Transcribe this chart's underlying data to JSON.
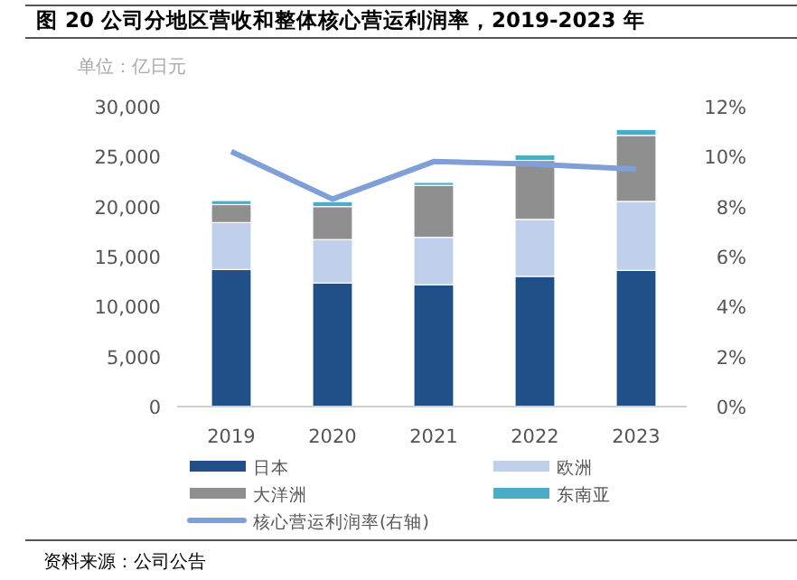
{
  "chart_data": {
    "type": "bar",
    "title": "图 20  公司分地区营收和整体核心营运利润率，2019-2023 年",
    "ylabel": "单位：亿日元",
    "categories": [
      "2019",
      "2020",
      "2021",
      "2022",
      "2023"
    ],
    "stacked": true,
    "series": [
      {
        "name": "日本",
        "color": "#215089",
        "values": [
          13700,
          12350,
          12170,
          13020,
          13620
        ]
      },
      {
        "name": "欧洲",
        "color": "#c0d0ea",
        "values": [
          4700,
          4350,
          4750,
          5700,
          6900
        ]
      },
      {
        "name": "大洋洲",
        "color": "#8f8f8f",
        "values": [
          1800,
          3300,
          5200,
          5900,
          6600
        ]
      },
      {
        "name": "东南亚",
        "color": "#4bacc6",
        "values": [
          400,
          500,
          300,
          550,
          600
        ]
      },
      {
        "name": "核心营运利润率(右轴)",
        "type": "line",
        "axis": "y2",
        "color": "#7f9fd6",
        "values": [
          10.2,
          8.3,
          9.8,
          9.7,
          9.5
        ]
      }
    ],
    "ylim": [
      0,
      30000
    ],
    "yticks": [
      0,
      {
        "value": 5000,
        "label": "5,000"
      },
      {
        "value": 10000,
        "label": "10,000"
      },
      {
        "value": 15000,
        "label": "15,000"
      },
      {
        "value": 20000,
        "label": "20,000"
      },
      {
        "value": 25000,
        "label": "25,000"
      },
      {
        "value": 30000,
        "label": "30,000"
      }
    ],
    "y2lim": [
      0,
      12
    ],
    "y2ticks": [
      {
        "value": 0,
        "label": "0%"
      },
      {
        "value": 2,
        "label": "2%"
      },
      {
        "value": 4,
        "label": "4%"
      },
      {
        "value": 6,
        "label": "6%"
      },
      {
        "value": 8,
        "label": "8%"
      },
      {
        "value": 10,
        "label": "10%"
      },
      {
        "value": 12,
        "label": "12%"
      }
    ],
    "legend": "bottom",
    "annotations": [
      "资料来源：公司公告"
    ]
  }
}
